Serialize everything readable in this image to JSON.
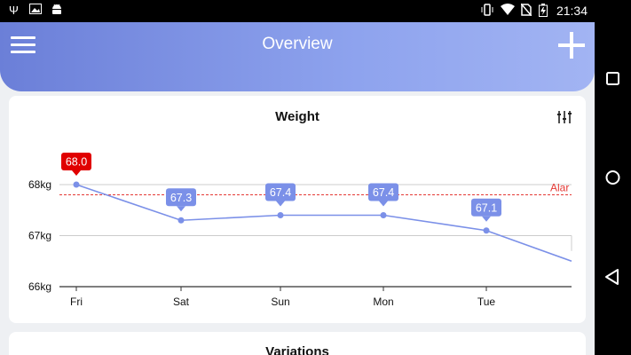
{
  "status_bar": {
    "time": "21:34",
    "left_icons": [
      "usb-icon",
      "image-icon",
      "android-icon"
    ],
    "right_icons": [
      "vibrate-icon",
      "wifi-icon",
      "no-sim-icon",
      "battery-charging-icon"
    ]
  },
  "app_bar": {
    "title": "Overview",
    "menu_icon": "hamburger-menu-icon",
    "add_icon": "plus-icon",
    "gradient": [
      "#6b7fd8",
      "#a2b4f3"
    ]
  },
  "weight_card": {
    "title": "Weight",
    "filter_icon": "sliders-icon",
    "alarm_label": "Alar"
  },
  "variations_card": {
    "title": "Variations"
  },
  "colors": {
    "line": "#7b90e8",
    "label_bg": "#7b90e8",
    "highlight_bg": "#e00000",
    "alarm": "#e53935",
    "grid": "#cccccc"
  },
  "chart_data": {
    "type": "line",
    "categories": [
      "Fri",
      "Sat",
      "Sun",
      "Mon",
      "Tue"
    ],
    "values": [
      68.0,
      67.3,
      67.4,
      67.4,
      67.1
    ],
    "value_labels": [
      "68.0",
      "67.3",
      "67.4",
      "67.4",
      "67.1"
    ],
    "highlighted_index": 0,
    "trailing_value": 66.5,
    "y_ticks": [
      66,
      67,
      68
    ],
    "y_tick_labels": [
      "66kg",
      "67kg",
      "68kg"
    ],
    "ylim": [
      66,
      68
    ],
    "alarm_value": 67.8,
    "grid": true
  },
  "nav_bar": {
    "buttons": [
      "recents-square-icon",
      "home-circle-icon",
      "back-triangle-icon"
    ]
  }
}
